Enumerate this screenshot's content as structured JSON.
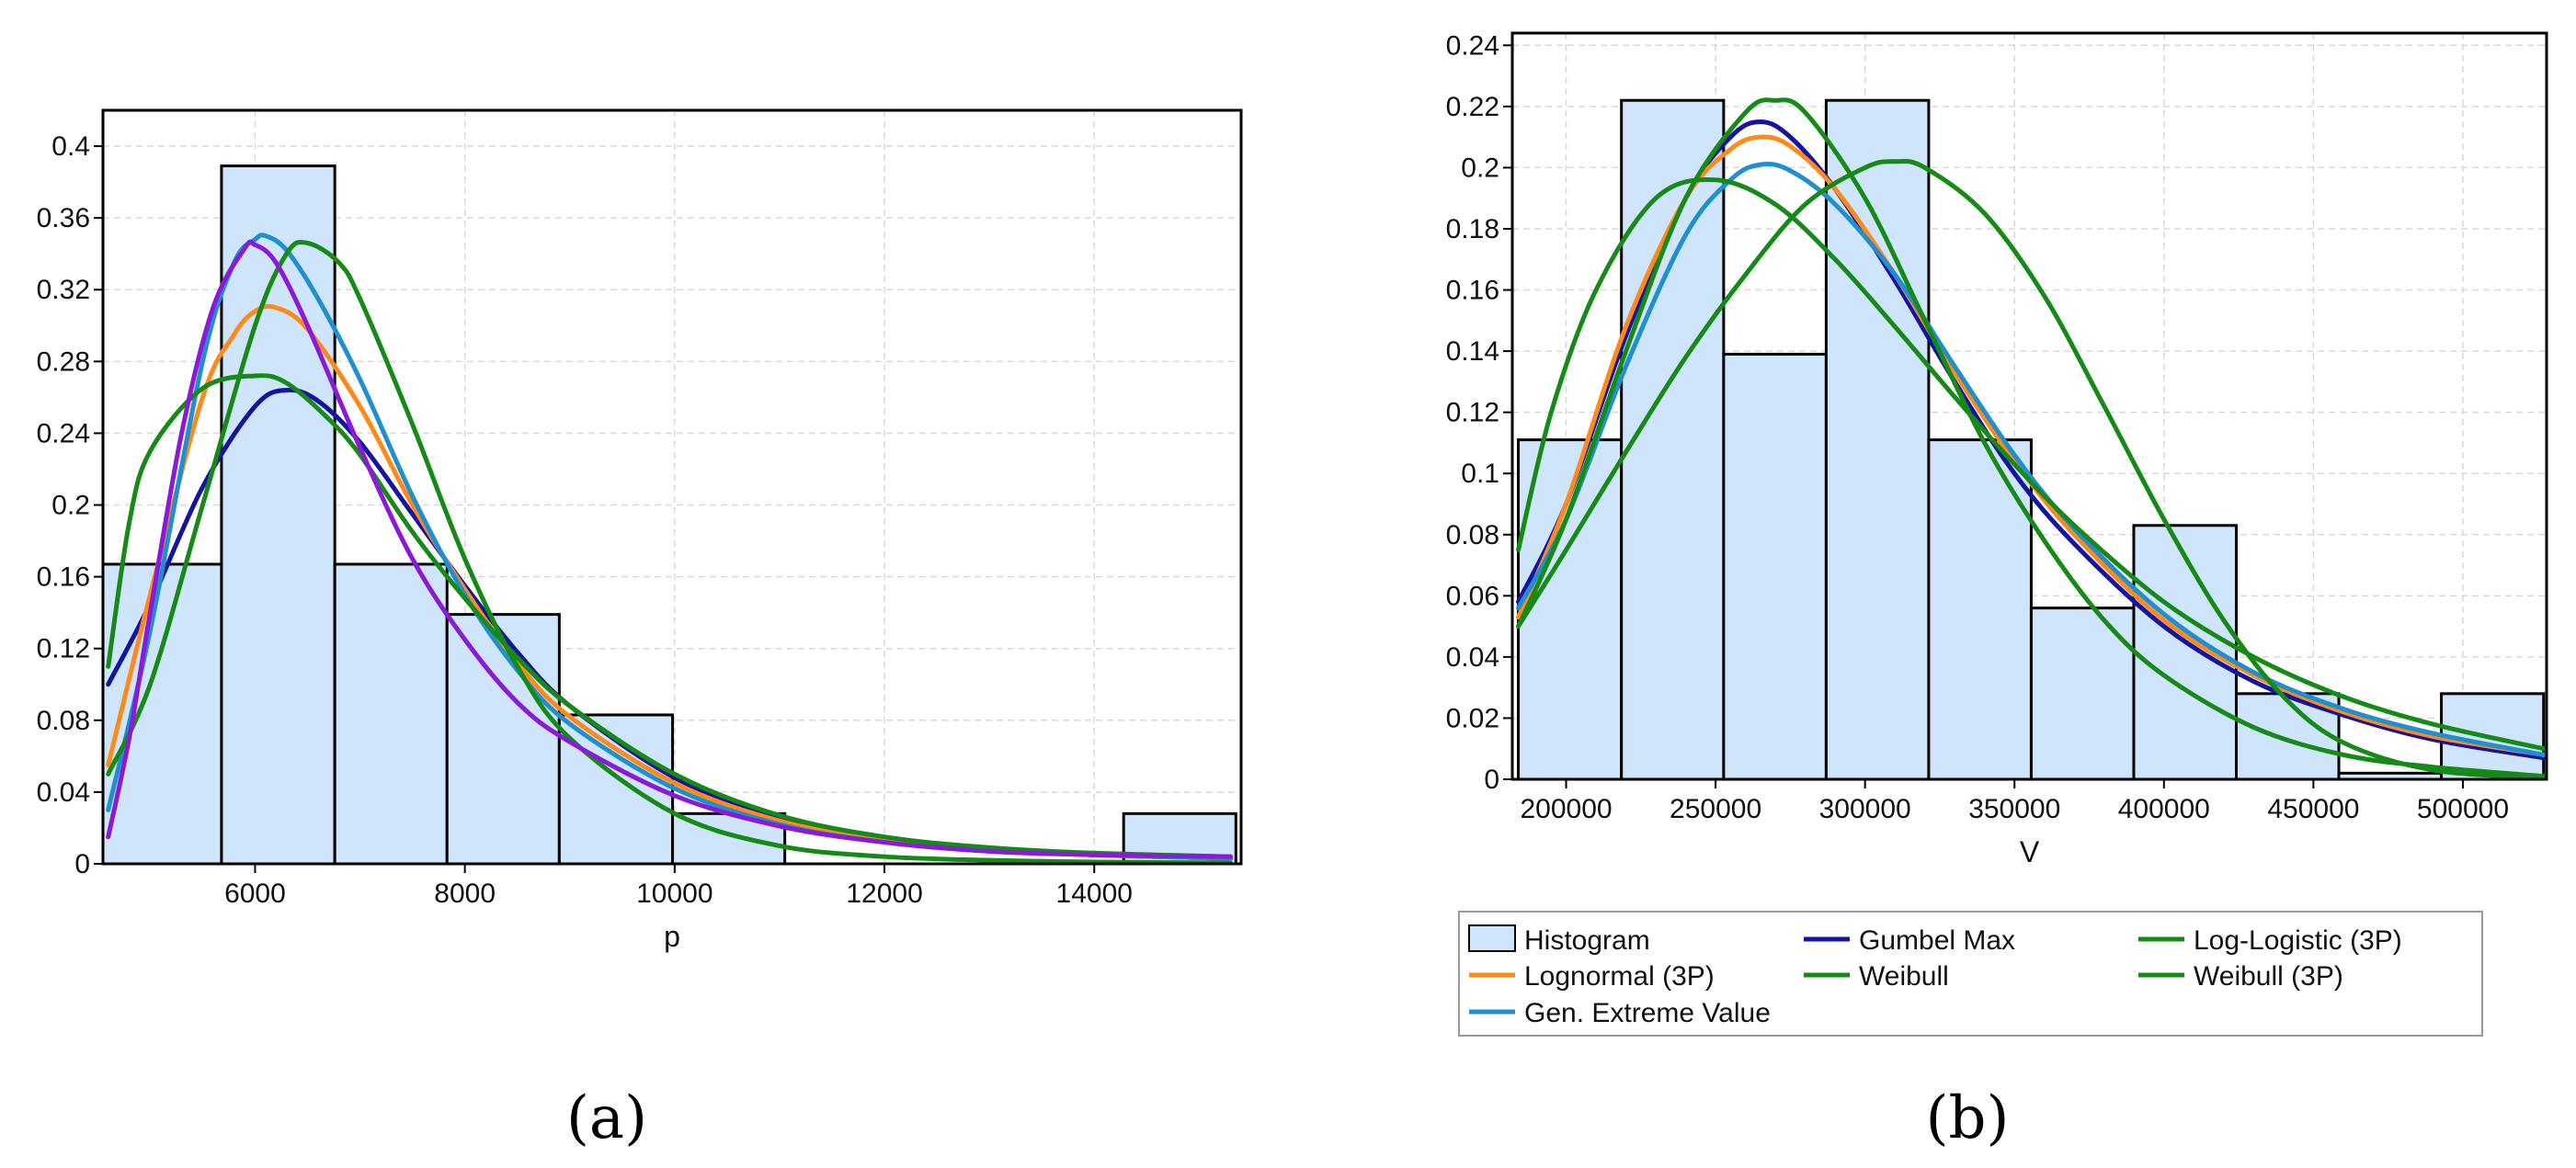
{
  "chart_data": [
    {
      "type": "bar",
      "panel_label": "(a)",
      "xlabel": "p",
      "ylabel": "",
      "xlim": [
        4550,
        15400
      ],
      "ylim": [
        0,
        0.42
      ],
      "grid": true,
      "x_ticks": [
        6000,
        8000,
        10000,
        12000,
        14000
      ],
      "y_ticks": [
        {
          "v": 0,
          "label": "0"
        },
        {
          "v": 0.04,
          "label": "0.04"
        },
        {
          "v": 0.08,
          "label": "0.08"
        },
        {
          "v": 0.12,
          "label": "0.12"
        },
        {
          "v": 0.16,
          "label": "0.16"
        },
        {
          "v": 0.2,
          "label": "0.2"
        },
        {
          "v": 0.24,
          "label": "0.24"
        },
        {
          "v": 0.28,
          "label": "0.28"
        },
        {
          "v": 0.32,
          "label": "0.32"
        },
        {
          "v": 0.36,
          "label": "0.36"
        },
        {
          "v": 0.4,
          "label": "0.4"
        }
      ],
      "histogram": {
        "bin_edges": [
          4550,
          5680,
          6760,
          7830,
          8900,
          9980,
          11050,
          12130,
          13200,
          14280,
          15350
        ],
        "values": [
          0.167,
          0.389,
          0.167,
          0.139,
          0.083,
          0.028,
          0,
          0,
          0,
          0.028
        ],
        "fill": "#cfe5fb"
      },
      "series": [
        {
          "name": "Gumbel Max",
          "color": "#1414a0",
          "x": [
            4600,
            5000,
            5500,
            6000,
            6300,
            6600,
            7000,
            7500,
            8000,
            8500,
            9000,
            10000,
            11000,
            12000,
            13000,
            14000,
            15300
          ],
          "y": [
            0.1,
            0.145,
            0.21,
            0.255,
            0.264,
            0.258,
            0.235,
            0.195,
            0.155,
            0.118,
            0.088,
            0.048,
            0.025,
            0.013,
            0.008,
            0.005,
            0.003
          ]
        },
        {
          "name": "Lognormal (3P)",
          "color": "#ff8a1a",
          "x": [
            4600,
            5000,
            5500,
            5800,
            6000,
            6200,
            6500,
            7000,
            7500,
            8000,
            8500,
            9000,
            10000,
            11000,
            12000,
            13000,
            14000,
            15300
          ],
          "y": [
            0.055,
            0.15,
            0.26,
            0.295,
            0.308,
            0.31,
            0.298,
            0.255,
            0.2,
            0.153,
            0.112,
            0.082,
            0.045,
            0.024,
            0.013,
            0.008,
            0.005,
            0.003
          ]
        },
        {
          "name": "Gen. Extreme Value",
          "color": "#1f8fd0",
          "x": [
            4600,
            5000,
            5500,
            5800,
            6000,
            6100,
            6300,
            6600,
            7000,
            7500,
            8000,
            8500,
            9000,
            10000,
            11000,
            12000,
            13000,
            14000,
            15300
          ],
          "y": [
            0.03,
            0.13,
            0.28,
            0.335,
            0.348,
            0.35,
            0.342,
            0.315,
            0.27,
            0.205,
            0.15,
            0.108,
            0.078,
            0.042,
            0.022,
            0.012,
            0.007,
            0.005,
            0.003
          ]
        },
        {
          "name": "Log-Logistic (3P)",
          "color": "#168a16",
          "x": [
            4600,
            4800,
            5000,
            5500,
            6000,
            6300,
            6700,
            7000,
            7500,
            8000,
            8500,
            9000,
            10000,
            11000,
            12000,
            13000,
            14000,
            15300
          ],
          "y": [
            0.11,
            0.19,
            0.23,
            0.265,
            0.272,
            0.268,
            0.248,
            0.228,
            0.185,
            0.148,
            0.115,
            0.088,
            0.05,
            0.027,
            0.015,
            0.009,
            0.006,
            0.004
          ]
        },
        {
          "name": "Weibull",
          "color": "#168a16",
          "x": [
            4600,
            5000,
            5500,
            6000,
            6300,
            6500,
            6800,
            7000,
            7500,
            8000,
            8500,
            9000,
            10000,
            11000,
            12000,
            13000,
            14000,
            15300
          ],
          "y": [
            0.05,
            0.1,
            0.2,
            0.3,
            0.34,
            0.346,
            0.335,
            0.315,
            0.245,
            0.17,
            0.11,
            0.07,
            0.028,
            0.01,
            0.004,
            0.002,
            0.001,
            0.0005
          ]
        },
        {
          "name": "Weibull (3P)",
          "color": "#8a1ad8",
          "x": [
            4600,
            4800,
            5000,
            5300,
            5600,
            5900,
            6000,
            6200,
            6500,
            7000,
            7500,
            8000,
            8500,
            9000,
            10000,
            11000,
            12000,
            13000,
            14000,
            15300
          ],
          "y": [
            0.015,
            0.07,
            0.14,
            0.24,
            0.31,
            0.343,
            0.345,
            0.335,
            0.3,
            0.232,
            0.17,
            0.125,
            0.09,
            0.068,
            0.038,
            0.021,
            0.012,
            0.007,
            0.005,
            0.004
          ]
        }
      ]
    },
    {
      "type": "bar",
      "panel_label": "(b)",
      "xlabel": "V",
      "ylabel": "",
      "xlim": [
        182000,
        528000
      ],
      "ylim": [
        0,
        0.244
      ],
      "grid": true,
      "x_ticks": [
        200000,
        250000,
        300000,
        350000,
        400000,
        450000,
        500000
      ],
      "y_ticks": [
        {
          "v": 0,
          "label": "0"
        },
        {
          "v": 0.02,
          "label": "0.02"
        },
        {
          "v": 0.04,
          "label": "0.04"
        },
        {
          "v": 0.06,
          "label": "0.06"
        },
        {
          "v": 0.08,
          "label": "0.08"
        },
        {
          "v": 0.1,
          "label": "0.1"
        },
        {
          "v": 0.12,
          "label": "0.12"
        },
        {
          "v": 0.14,
          "label": "0.14"
        },
        {
          "v": 0.16,
          "label": "0.16"
        },
        {
          "v": 0.18,
          "label": "0.18"
        },
        {
          "v": 0.2,
          "label": "0.2"
        },
        {
          "v": 0.22,
          "label": "0.22"
        },
        {
          "v": 0.24,
          "label": "0.24"
        }
      ],
      "histogram": {
        "bin_edges": [
          184000,
          218500,
          252700,
          287000,
          321300,
          355600,
          389900,
          424200,
          458500,
          492800,
          527000
        ],
        "values": [
          0.111,
          0.222,
          0.139,
          0.222,
          0.111,
          0.056,
          0.083,
          0.028,
          0.002,
          0.028
        ],
        "fill": "#cfe5fb"
      },
      "series": [
        {
          "name": "Gumbel Max",
          "color": "#1414a0",
          "x": [
            184000,
            200000,
            220000,
            240000,
            255000,
            265000,
            275000,
            290000,
            310000,
            330000,
            350000,
            370000,
            400000,
            430000,
            460000,
            490000,
            527000
          ],
          "y": [
            0.058,
            0.09,
            0.145,
            0.19,
            0.21,
            0.215,
            0.21,
            0.193,
            0.163,
            0.13,
            0.1,
            0.077,
            0.05,
            0.032,
            0.021,
            0.013,
            0.007
          ]
        },
        {
          "name": "Lognormal (3P)",
          "color": "#ff8a1a",
          "x": [
            184000,
            200000,
            220000,
            240000,
            255000,
            265000,
            275000,
            290000,
            310000,
            330000,
            350000,
            370000,
            400000,
            430000,
            460000,
            490000,
            527000
          ],
          "y": [
            0.053,
            0.09,
            0.148,
            0.19,
            0.206,
            0.21,
            0.207,
            0.193,
            0.165,
            0.133,
            0.104,
            0.08,
            0.052,
            0.034,
            0.022,
            0.014,
            0.008
          ]
        },
        {
          "name": "Gen. Extreme Value",
          "color": "#1f8fd0",
          "x": [
            184000,
            200000,
            220000,
            240000,
            255000,
            265000,
            275000,
            290000,
            310000,
            330000,
            350000,
            370000,
            400000,
            430000,
            460000,
            490000,
            527000
          ],
          "y": [
            0.056,
            0.085,
            0.135,
            0.178,
            0.196,
            0.201,
            0.199,
            0.188,
            0.165,
            0.135,
            0.106,
            0.082,
            0.054,
            0.035,
            0.023,
            0.015,
            0.008
          ]
        },
        {
          "name": "Log-Logistic (3P)",
          "color": "#168a16",
          "x": [
            184000,
            195000,
            210000,
            230000,
            250000,
            270000,
            290000,
            310000,
            330000,
            350000,
            370000,
            400000,
            430000,
            460000,
            490000,
            527000
          ],
          "y": [
            0.075,
            0.12,
            0.16,
            0.19,
            0.196,
            0.188,
            0.17,
            0.148,
            0.125,
            0.103,
            0.083,
            0.058,
            0.04,
            0.027,
            0.018,
            0.01
          ]
        },
        {
          "name": "Weibull",
          "color": "#168a16",
          "x": [
            184000,
            200000,
            220000,
            240000,
            260000,
            270000,
            280000,
            300000,
            320000,
            340000,
            360000,
            380000,
            400000,
            430000,
            460000,
            490000,
            527000
          ],
          "y": [
            0.05,
            0.085,
            0.14,
            0.19,
            0.218,
            0.222,
            0.218,
            0.19,
            0.15,
            0.11,
            0.078,
            0.052,
            0.034,
            0.017,
            0.008,
            0.004,
            0.001
          ]
        },
        {
          "name": "Weibull (3P)",
          "color": "#168a16",
          "x": [
            184000,
            200000,
            220000,
            240000,
            260000,
            280000,
            300000,
            310000,
            320000,
            340000,
            360000,
            380000,
            400000,
            420000,
            440000,
            460000,
            490000,
            527000
          ],
          "y": [
            0.05,
            0.075,
            0.107,
            0.138,
            0.165,
            0.188,
            0.2,
            0.202,
            0.2,
            0.185,
            0.158,
            0.122,
            0.085,
            0.052,
            0.027,
            0.012,
            0.003,
            0.0005
          ]
        }
      ],
      "legend": {
        "placement": "bottom",
        "entries": [
          {
            "label": "Histogram",
            "kind": "box",
            "color": "#cfe5fb"
          },
          {
            "label": "Gumbel Max",
            "kind": "line",
            "color": "#1414a0"
          },
          {
            "label": "Log-Logistic (3P)",
            "kind": "line",
            "color": "#168a16"
          },
          {
            "label": "Lognormal (3P)",
            "kind": "line",
            "color": "#ff8a1a"
          },
          {
            "label": "Weibull",
            "kind": "line",
            "color": "#168a16"
          },
          {
            "label": "Weibull (3P)",
            "kind": "line",
            "color": "#168a16"
          },
          {
            "label": "Gen. Extreme Value",
            "kind": "line",
            "color": "#1f8fd0"
          }
        ]
      }
    }
  ]
}
